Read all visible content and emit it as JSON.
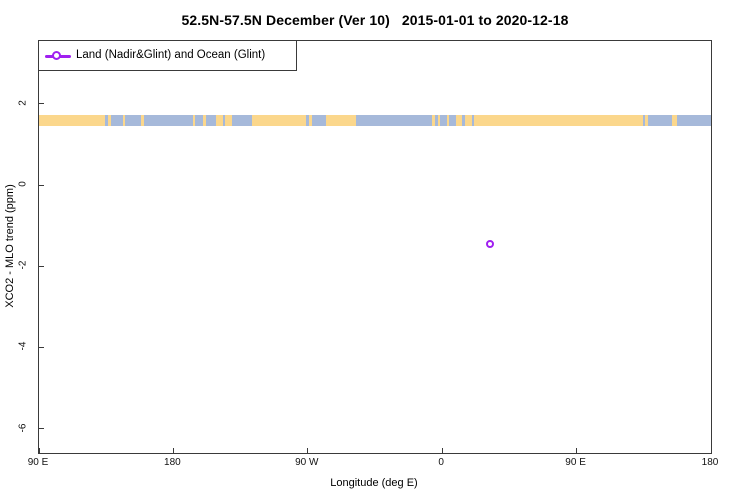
{
  "title": "52.5N-57.5N December (Ver 10)   2015-01-01 to 2020-12-18",
  "legend": {
    "label": "Land (Nadir&Glint) and Ocean (Glint)"
  },
  "colors": {
    "land": "#FBD78C",
    "ocean": "#A6B9DA",
    "marker": "#A020F0",
    "frame": "#3A3A3A"
  },
  "chart_data": {
    "type": "scatter",
    "title": "52.5N-57.5N December (Ver 10)   2015-01-01 to 2020-12-18",
    "xlabel": "Longitude (deg E)",
    "ylabel": "XCO2 - MLO trend (ppm)",
    "grid": false,
    "legend_position": "top-left",
    "x_axis": {
      "start_at": "90 E",
      "span_deg": 450,
      "ticks": [
        {
          "label": "90 E",
          "axis_deg": 0
        },
        {
          "label": "180",
          "axis_deg": 90
        },
        {
          "label": "90 W",
          "axis_deg": 180
        },
        {
          "label": "0",
          "axis_deg": 270
        },
        {
          "label": "90 E",
          "axis_deg": 360
        },
        {
          "label": "180",
          "axis_deg": 450
        }
      ]
    },
    "y_axis": {
      "ticks": [
        2,
        0,
        -2,
        -4,
        -6
      ],
      "min": -6.6,
      "max": 3.55
    },
    "points": [
      {
        "longitude_deg_e": 32,
        "axis_deg": 302,
        "value_ppm": -1.46
      }
    ],
    "map_band": {
      "latitude_range": "52.5N-57.5N",
      "value_from_ppm": 1.45,
      "value_to_ppm": 1.72,
      "base": "land",
      "ocean_segments": [
        {
          "from": 44.5,
          "to": 46
        },
        {
          "from": 48.2,
          "to": 68.3
        },
        {
          "from": 70.3,
          "to": 118.5
        },
        {
          "from": 123,
          "to": 124.5
        },
        {
          "from": 129.2,
          "to": 142.6
        },
        {
          "from": 179,
          "to": 181
        },
        {
          "from": 183,
          "to": 192.2
        },
        {
          "from": 212.2,
          "to": 263.2
        },
        {
          "from": 265,
          "to": 267
        },
        {
          "from": 268.5,
          "to": 279.2
        },
        {
          "from": 283,
          "to": 285
        },
        {
          "from": 290,
          "to": 291.5
        },
        {
          "from": 404.5,
          "to": 406
        },
        {
          "from": 407.5,
          "to": 423.9
        },
        {
          "from": 427.2,
          "to": 450
        }
      ],
      "land_islands": [
        {
          "from": 56.5,
          "to": 57.5
        },
        {
          "from": 103,
          "to": 104.5
        },
        {
          "from": 110,
          "to": 111.5
        },
        {
          "from": 273,
          "to": 274.5
        }
      ]
    }
  }
}
